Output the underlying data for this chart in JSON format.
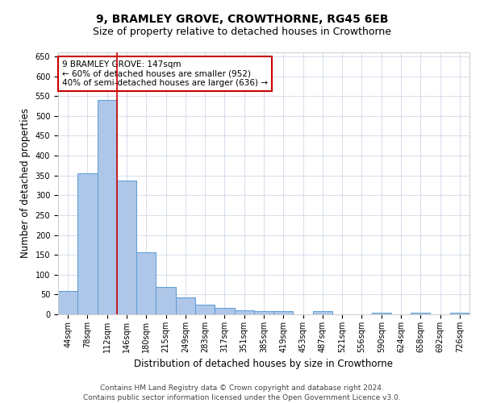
{
  "title": "9, BRAMLEY GROVE, CROWTHORNE, RG45 6EB",
  "subtitle": "Size of property relative to detached houses in Crowthorne",
  "xlabel": "Distribution of detached houses by size in Crowthorne",
  "ylabel": "Number of detached properties",
  "categories": [
    "44sqm",
    "78sqm",
    "112sqm",
    "146sqm",
    "180sqm",
    "215sqm",
    "249sqm",
    "283sqm",
    "317sqm",
    "351sqm",
    "385sqm",
    "419sqm",
    "453sqm",
    "487sqm",
    "521sqm",
    "556sqm",
    "590sqm",
    "624sqm",
    "658sqm",
    "692sqm",
    "726sqm"
  ],
  "values": [
    58,
    355,
    540,
    338,
    157,
    70,
    42,
    25,
    17,
    10,
    9,
    9,
    0,
    9,
    0,
    0,
    5,
    0,
    5,
    0,
    5
  ],
  "bar_color": "#aec6e8",
  "bar_edge_color": "#5b9bd5",
  "background_color": "#ffffff",
  "grid_color": "#d0d8e8",
  "vline_x_index": 2.5,
  "vline_color": "#cc0000",
  "annotation_text": "9 BRAMLEY GROVE: 147sqm\n← 60% of detached houses are smaller (952)\n40% of semi-detached houses are larger (636) →",
  "annotation_box_color": "#ffffff",
  "annotation_box_edge_color": "#cc0000",
  "ylim": [
    0,
    660
  ],
  "yticks": [
    0,
    50,
    100,
    150,
    200,
    250,
    300,
    350,
    400,
    450,
    500,
    550,
    600,
    650
  ],
  "footer_text": "Contains HM Land Registry data © Crown copyright and database right 2024.\nContains public sector information licensed under the Open Government Licence v3.0.",
  "title_fontsize": 10,
  "subtitle_fontsize": 9,
  "xlabel_fontsize": 8.5,
  "ylabel_fontsize": 8.5,
  "tick_fontsize": 7,
  "annotation_fontsize": 7.5,
  "footer_fontsize": 6.5
}
